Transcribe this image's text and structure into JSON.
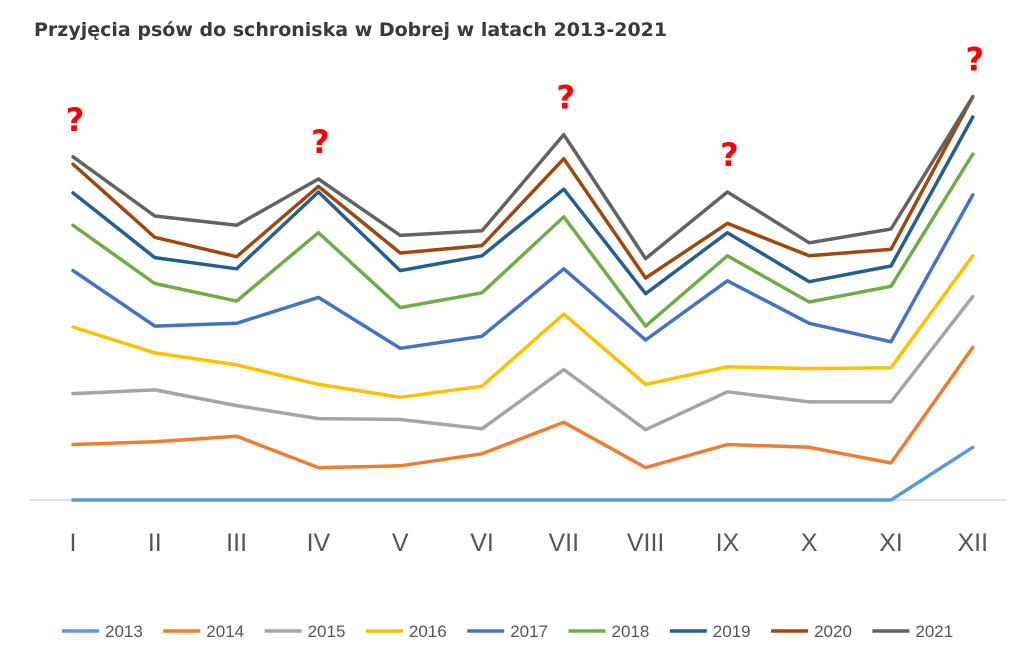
{
  "chart_data": {
    "type": "line",
    "title": "Przyjęcia psów do schroniska w Dobrej  w latach 2013-2021",
    "categories": [
      "I",
      "II",
      "III",
      "IV",
      "V",
      "VI",
      "VII",
      "VIII",
      "IX",
      "X",
      "XI",
      "XII"
    ],
    "xlabel": "",
    "ylabel": "",
    "stacked": true,
    "grid": false,
    "legend_position": "bottom",
    "annotations": [
      {
        "text": "?",
        "category": "I"
      },
      {
        "text": "?",
        "category": "IV"
      },
      {
        "text": "?",
        "category": "VII"
      },
      {
        "text": "?",
        "category": "IX"
      },
      {
        "text": "?",
        "category": "XII"
      }
    ],
    "series": [
      {
        "name": "2013",
        "color": "#5b9bd5",
        "values": [
          0,
          0,
          0,
          0,
          0,
          0,
          0,
          0,
          0,
          0,
          0,
          57
        ]
      },
      {
        "name": "2014",
        "color": "#ed7d31",
        "values": [
          60,
          63,
          69,
          35,
          37,
          50,
          84,
          35,
          60,
          57,
          40,
          108
        ]
      },
      {
        "name": "2015",
        "color": "#a5a5a5",
        "values": [
          55,
          56,
          33,
          53,
          50,
          27,
          57,
          41,
          57,
          49,
          66,
          55
        ]
      },
      {
        "name": "2016",
        "color": "#ffc000",
        "values": [
          72,
          40,
          44,
          37,
          24,
          46,
          60,
          49,
          27,
          36,
          37,
          44
        ]
      },
      {
        "name": "2017",
        "color": "#4472c4",
        "values": [
          61,
          29,
          45,
          94,
          53,
          54,
          49,
          48,
          93,
          49,
          28,
          66
        ]
      },
      {
        "name": "2018",
        "color": "#70ad47",
        "values": [
          49,
          46,
          24,
          70,
          44,
          47,
          56,
          15,
          27,
          23,
          60,
          44
        ]
      },
      {
        "name": "2019",
        "color": "#255e91",
        "values": [
          35,
          28,
          35,
          44,
          40,
          40,
          30,
          35,
          25,
          22,
          22,
          40
        ]
      },
      {
        "name": "2020",
        "color": "#9e480e",
        "values": [
          31,
          22,
          13,
          6,
          19,
          11,
          33,
          17,
          10,
          28,
          18,
          22
        ]
      },
      {
        "name": "2021",
        "color": "#636363",
        "values": [
          8,
          23,
          34,
          8,
          19,
          16,
          26,
          21,
          34,
          14,
          22,
          0
        ]
      }
    ]
  }
}
